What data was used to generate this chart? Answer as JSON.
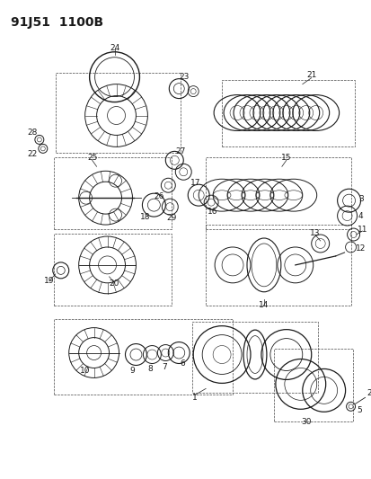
{
  "title": "91J51  1100B",
  "bg_color": "#ffffff",
  "line_color": "#1a1a1a",
  "title_fontsize": 10,
  "label_fontsize": 6.5,
  "fig_width": 4.14,
  "fig_height": 5.33,
  "dpi": 100
}
